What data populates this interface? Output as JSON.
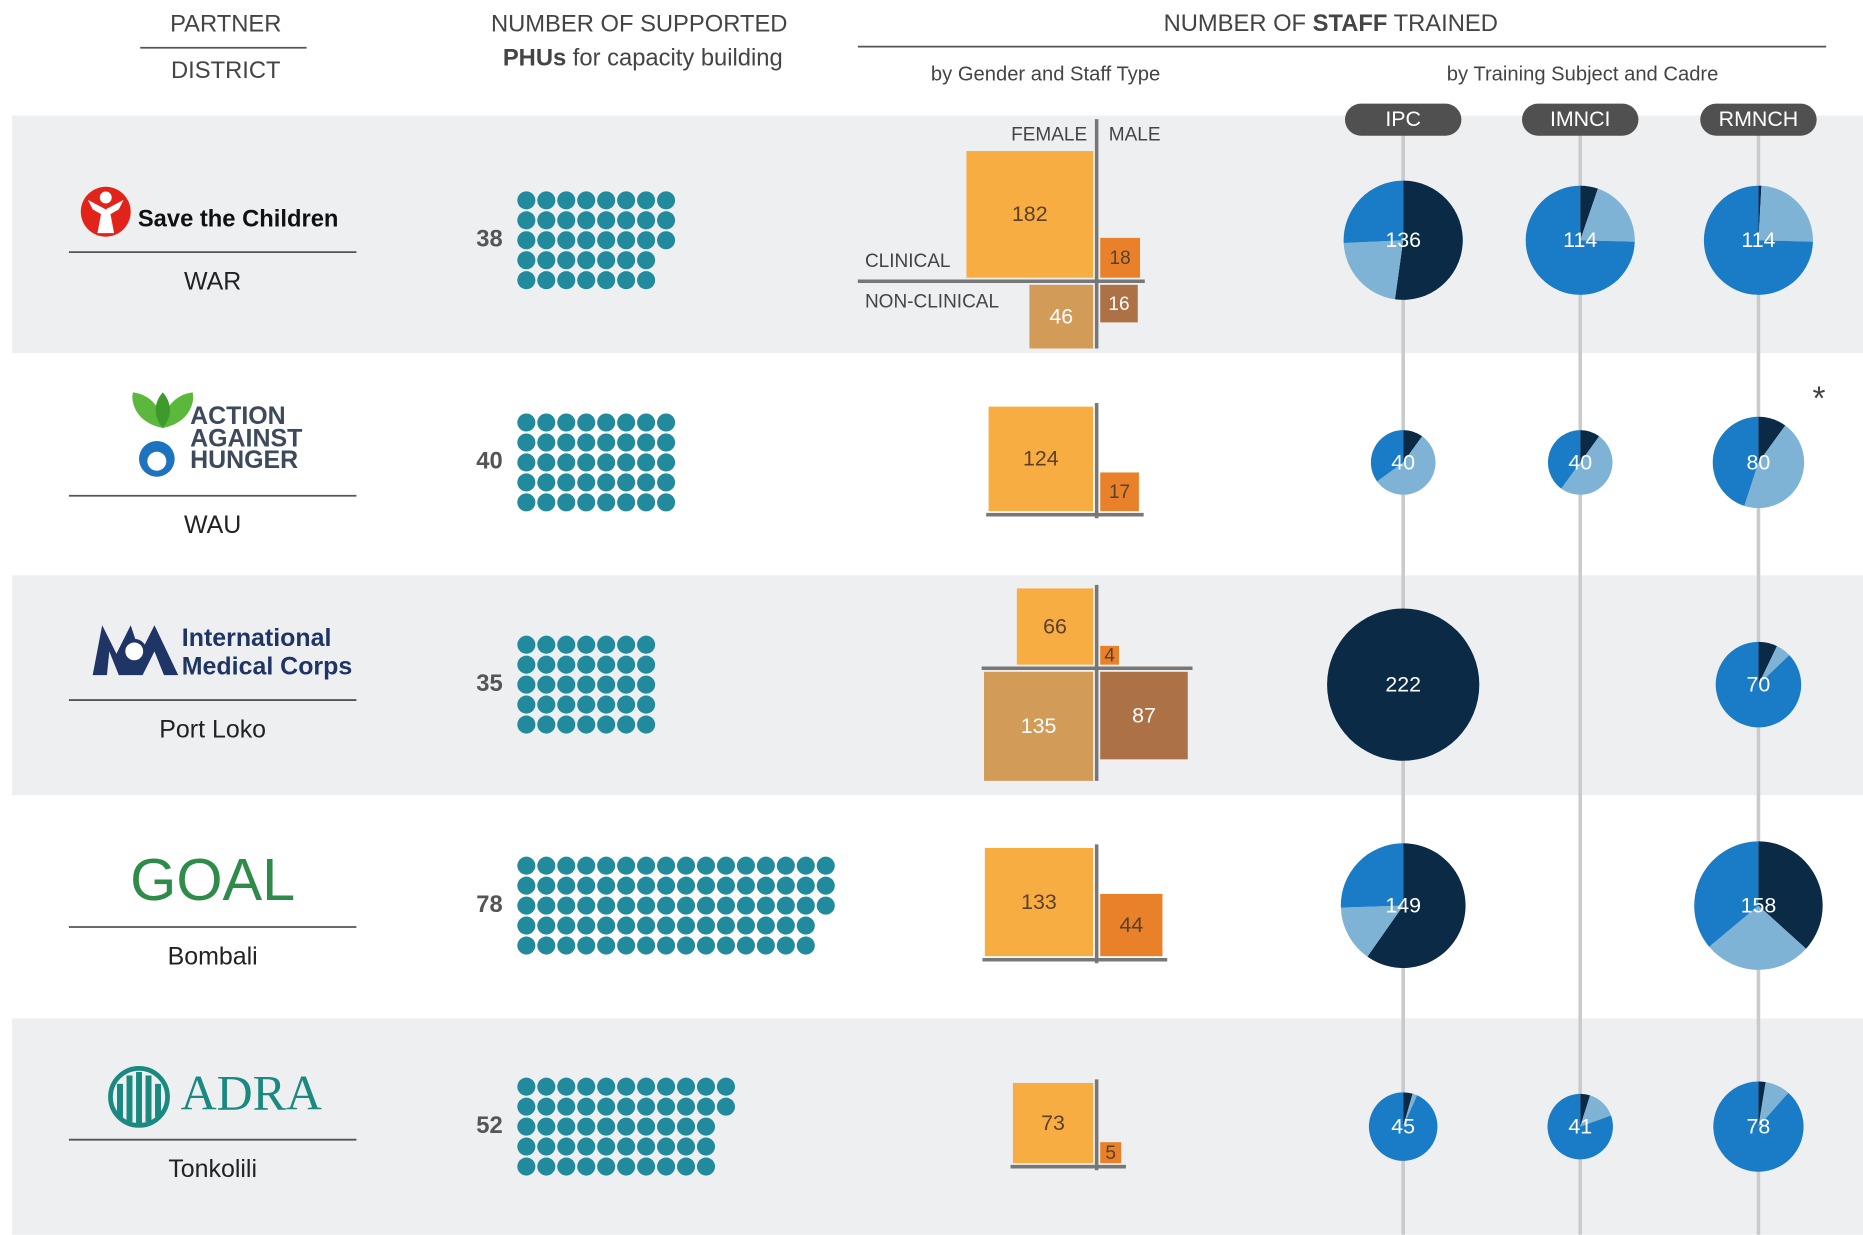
{
  "header": {
    "partner": "PARTNER",
    "district": "DISTRICT",
    "phus_line1": "NUMBER OF SUPPORTED",
    "phus_bold": "PHUs",
    "phus_rest": " for capacity building",
    "staff_pre": "NUMBER OF ",
    "staff_bold": "STAFF",
    "staff_post": " TRAINED",
    "by_gender": "by Gender and Staff Type",
    "by_subject": "by Training Subject and Cadre",
    "female": "FEMALE",
    "male": "MALE",
    "clinical": "CLINICAL",
    "non_clinical": "NON-CLINICAL",
    "subjects": [
      "IPC",
      "IMNCI",
      "RMNCH"
    ],
    "note": "*"
  },
  "colors": {
    "dot": "#218a9c",
    "female_clinical": "#f7ad42",
    "male_clinical": "#e8812a",
    "female_nonclinical": "#d29b58",
    "male_nonclinical": "#ad7146",
    "slices": [
      "#0b2a45",
      "#7fb3d5",
      "#1a7bc6"
    ]
  },
  "rows": [
    {
      "logo": [
        "Save the Children"
      ],
      "district": "WAR",
      "phus": 38,
      "staff": {
        "female_clinical": 182,
        "male_clinical": 18,
        "female_nonclinical": 46,
        "male_nonclinical": 16
      },
      "training": [
        {
          "total": 136,
          "slices": [
            71,
            30,
            35
          ]
        },
        {
          "total": 114,
          "slices": [
            6,
            23,
            85
          ]
        },
        {
          "total": 114,
          "slices": [
            1,
            28,
            85
          ]
        }
      ]
    },
    {
      "logo": [
        "ACTION",
        "AGAINST",
        "HUNGER"
      ],
      "district": "WAU",
      "phus": 40,
      "staff": {
        "female_clinical": 124,
        "male_clinical": 17
      },
      "training": [
        {
          "total": 40,
          "slices": [
            4,
            22,
            14
          ]
        },
        {
          "total": 40,
          "slices": [
            4,
            20,
            16
          ]
        },
        {
          "total": 80,
          "slices": [
            8,
            36,
            36
          ]
        }
      ],
      "note": true
    },
    {
      "logo": [
        "International",
        "Medical Corps"
      ],
      "district": "Port Loko",
      "phus": 35,
      "staff": {
        "female_clinical": 66,
        "male_clinical": 4,
        "female_nonclinical": 135,
        "male_nonclinical": 87
      },
      "training": [
        {
          "total": 222,
          "slices": [
            222,
            0,
            0
          ]
        },
        null,
        {
          "total": 70,
          "slices": [
            5,
            4,
            61
          ]
        }
      ]
    },
    {
      "logo": [
        "GOAL"
      ],
      "district": "Bombali",
      "phus": 78,
      "staff": {
        "female_clinical": 133,
        "male_clinical": 44
      },
      "training": [
        {
          "total": 149,
          "slices": [
            89,
            22,
            38
          ]
        },
        null,
        {
          "total": 158,
          "slices": [
            58,
            43,
            57
          ]
        }
      ]
    },
    {
      "logo": [
        "ADRA"
      ],
      "district": "Tonkolili",
      "phus": 52,
      "staff": {
        "female_clinical": 73,
        "male_clinical": 5
      },
      "training": [
        {
          "total": 45,
          "slices": [
            2,
            1,
            42
          ]
        },
        {
          "total": 41,
          "slices": [
            2,
            6,
            33
          ]
        },
        {
          "total": 78,
          "slices": [
            2,
            7,
            69
          ]
        }
      ]
    }
  ]
}
